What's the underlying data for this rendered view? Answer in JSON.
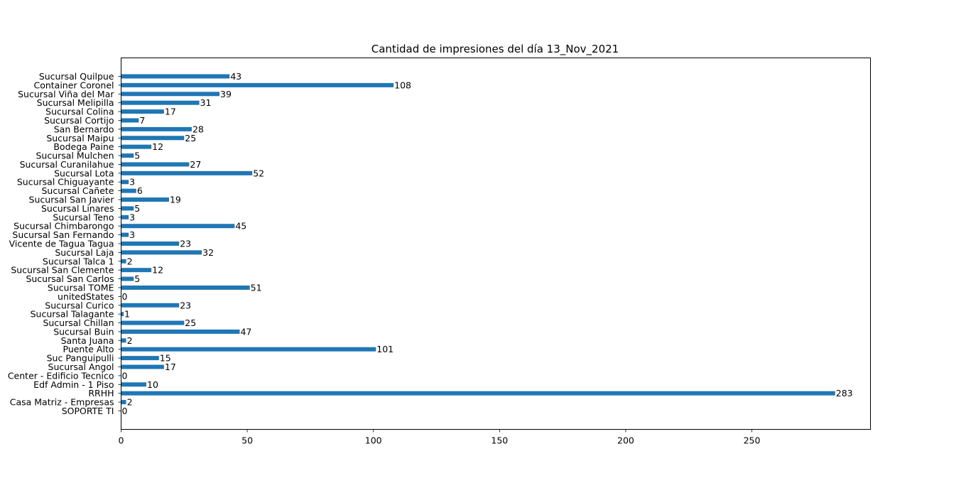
{
  "chart_data": {
    "type": "bar",
    "orientation": "horizontal",
    "title": "Cantidad de impresiones del día 13_Nov_2021",
    "xlabel": "",
    "ylabel": "",
    "xlim": [
      0,
      297
    ],
    "xticks": [
      0,
      50,
      100,
      150,
      200,
      250
    ],
    "grid": false,
    "bar_color": "#1f77b4",
    "categories": [
      "Sucursal Quilpue",
      "Container Coronel",
      "Sucursal Viña del Mar",
      "Sucursal Melipilla",
      "Sucursal Colina",
      "Sucursal Cortijo",
      "San Bernardo",
      "Sucursal Maipu",
      "Bodega Paine",
      "Sucursal Mulchen",
      "Sucursal Curanilahue",
      "Sucursal Lota",
      "Sucursal Chiguayante",
      "Sucursal Cañete",
      "Sucursal San Javier",
      "Sucursal Linares",
      "Sucursal Teno",
      "Sucursal Chimbarongo",
      "Sucursal San Fernando",
      "Vicente de Tagua Tagua",
      "Sucursal Laja",
      "Sucursal Talca 1",
      "Sucursal San Clemente",
      "Sucursal San Carlos",
      "Sucursal TOME",
      "unitedStates",
      "Sucursal Curico",
      "Sucursal Talagante",
      "Sucursal Chillan",
      "Sucursal Buin",
      "Santa Juana",
      "Puente Alto",
      "Suc Panguipulli",
      "Sucursal Angol",
      "Center - Edificio Tecnico",
      "Edf Admin - 1 Piso",
      "RRHH",
      "Casa Matriz - Empresas",
      "SOPORTE TI"
    ],
    "values": [
      43,
      108,
      39,
      31,
      17,
      7,
      28,
      25,
      12,
      5,
      27,
      52,
      3,
      6,
      19,
      5,
      3,
      45,
      3,
      23,
      32,
      2,
      12,
      5,
      51,
      0,
      23,
      1,
      25,
      47,
      2,
      101,
      15,
      17,
      0,
      10,
      283,
      2,
      0
    ]
  }
}
